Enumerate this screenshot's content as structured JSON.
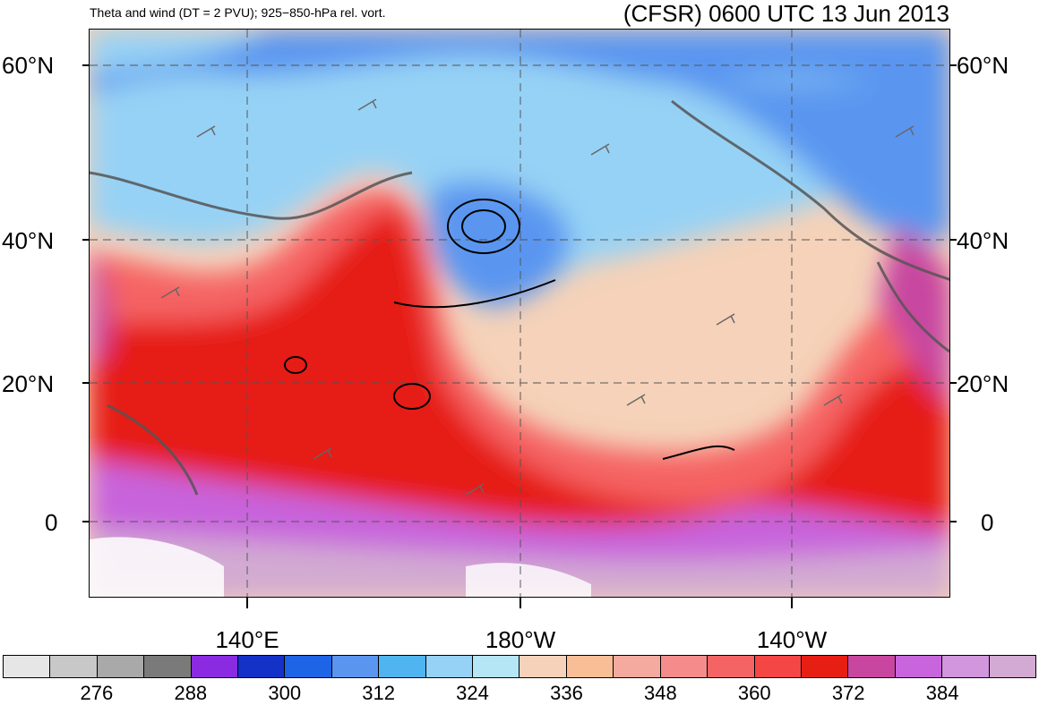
{
  "header": {
    "description": "Theta and wind (DT = 2 PVU); 925−850-hPa rel. vort.",
    "title": "(CFSR) 0600 UTC 13 Jun 2013"
  },
  "map": {
    "lat_labels": [
      "60°N",
      "40°N",
      "20°N",
      "0"
    ],
    "lon_labels": [
      "140°E",
      "180°W",
      "140°W"
    ]
  },
  "colorbar": {
    "labels": [
      "276",
      "288",
      "300",
      "312",
      "324",
      "336",
      "348",
      "360",
      "372",
      "384"
    ],
    "colors": [
      "#e6e6e6",
      "#c8c8c8",
      "#a9a9a9",
      "#7a7a7a",
      "#8a2be2",
      "#1432c8",
      "#1e64e6",
      "#5a96f0",
      "#50b4f0",
      "#96d2f5",
      "#b4e6f5",
      "#f5d2b9",
      "#fabe96",
      "#f5aaa0",
      "#f58c8c",
      "#f56464",
      "#f54646",
      "#e61e14",
      "#c846a0",
      "#c864dc",
      "#d296dc",
      "#d2aad2"
    ]
  }
}
